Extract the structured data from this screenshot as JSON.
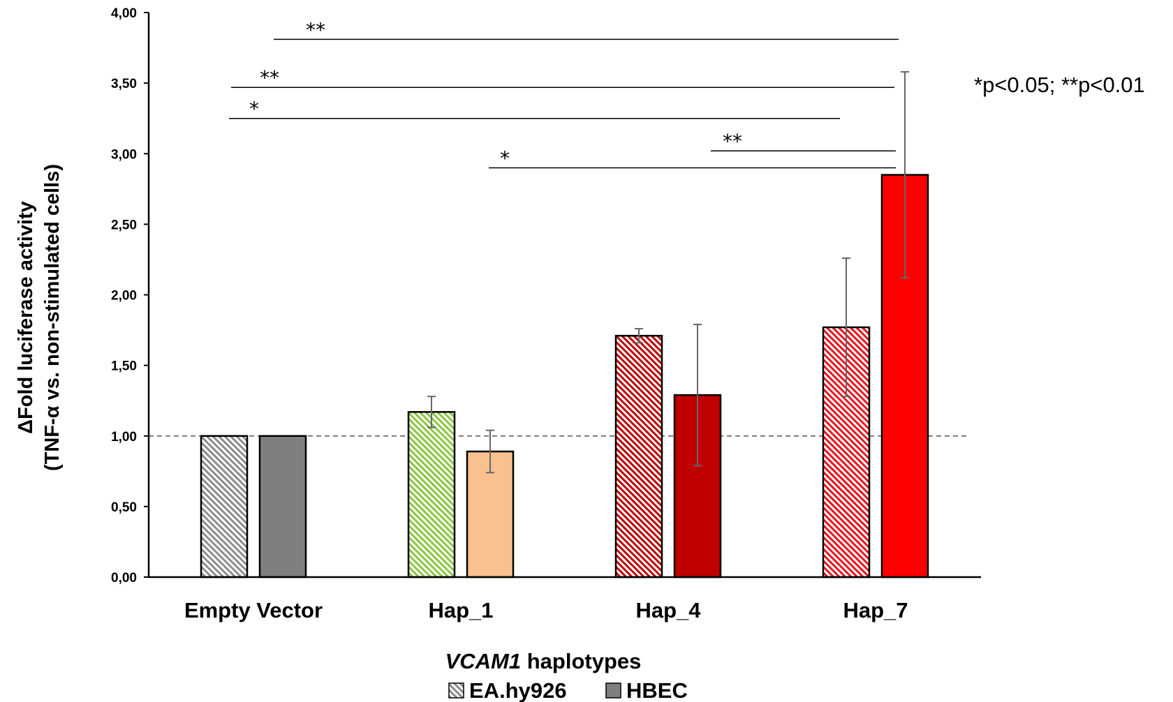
{
  "chart_data": {
    "type": "bar",
    "categories": [
      "Empty Vector",
      "Hap_1",
      "Hap_4",
      "Hap_7"
    ],
    "series": [
      {
        "name": "EA.hy926",
        "pattern": "hatched",
        "values": [
          1.0,
          1.17,
          1.71,
          1.77
        ],
        "errors": [
          0,
          0.11,
          0.05,
          0.49
        ],
        "colors": [
          "#8c8c8c",
          "#8cc63f",
          "#c00000",
          "#e8141e"
        ]
      },
      {
        "name": "HBEC",
        "pattern": "solid",
        "values": [
          1.0,
          0.89,
          1.29,
          2.85
        ],
        "errors": [
          0,
          0.15,
          0.5,
          0.73
        ],
        "colors": [
          "#7f7f7f",
          "#f8c18f",
          "#c00000",
          "#ff0000"
        ]
      }
    ],
    "yticks": [
      "0,00",
      "0,50",
      "1,00",
      "1,50",
      "2,00",
      "2,50",
      "3,00",
      "3,50",
      "4,00"
    ],
    "ylim": [
      0,
      4
    ],
    "reference_line": 1.0,
    "ylabel_line1": "ΔFold luciferase activity",
    "ylabel_line2": "(TNF-α vs. non-stimulated cells)",
    "xlabel_italic": "VCAM1",
    "xlabel_rest": " haplotypes",
    "significance_note": "*p<0.05; **p<0.01",
    "significance": [
      {
        "from": "Empty Vector",
        "to": "Hap_7",
        "y": 3.81,
        "label": "**"
      },
      {
        "from": "Empty Vector",
        "to": "Hap_7",
        "y": 3.47,
        "label": "**"
      },
      {
        "from": "Empty Vector",
        "to": "Hap_7",
        "y": 3.25,
        "label": "*"
      },
      {
        "from": "Hap_4",
        "to": "Hap_7",
        "y": 3.02,
        "label": "**"
      },
      {
        "from": "Hap_1",
        "to": "Hap_7",
        "y": 2.9,
        "label": "*"
      }
    ]
  }
}
